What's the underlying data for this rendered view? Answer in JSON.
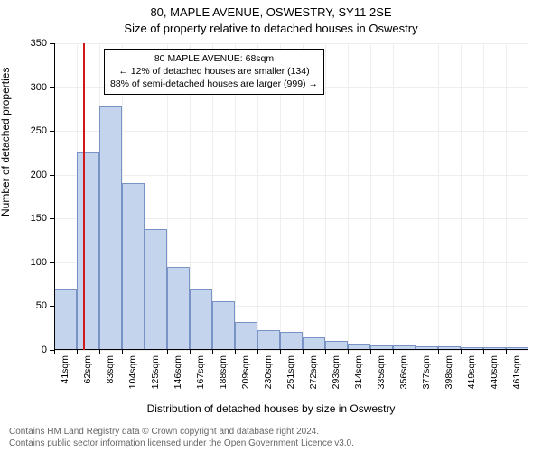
{
  "title_main": "80, MAPLE AVENUE, OSWESTRY, SY11 2SE",
  "title_sub": "Size of property relative to detached houses in Oswestry",
  "ylabel": "Number of detached properties",
  "xlabel": "Distribution of detached houses by size in Oswestry",
  "chart": {
    "type": "histogram",
    "ylim": [
      0,
      350
    ],
    "ytick_step": 50,
    "yticks": [
      0,
      50,
      100,
      150,
      200,
      250,
      300,
      350
    ],
    "categories": [
      "41sqm",
      "62sqm",
      "83sqm",
      "104sqm",
      "125sqm",
      "146sqm",
      "167sqm",
      "188sqm",
      "209sqm",
      "230sqm",
      "251sqm",
      "272sqm",
      "293sqm",
      "314sqm",
      "335sqm",
      "356sqm",
      "377sqm",
      "398sqm",
      "419sqm",
      "440sqm",
      "461sqm"
    ],
    "values": [
      70,
      225,
      278,
      190,
      138,
      95,
      70,
      56,
      32,
      23,
      21,
      14,
      10,
      7,
      5,
      5,
      4,
      4,
      3,
      3,
      3
    ],
    "bar_fill": "#c5d4ed",
    "bar_stroke": "#7a93c6",
    "background_color": "#ffffff",
    "grid_color": "#eeeeee",
    "marker_line_color": "#d01818",
    "marker_bin_index": 1,
    "bar_width_ratio": 1.0
  },
  "annotation": {
    "line1": "80 MAPLE AVENUE: 68sqm",
    "line2": "← 12% of detached houses are smaller (134)",
    "line3": "88% of semi-detached houses are larger (999) →"
  },
  "footer": {
    "line1": "Contains HM Land Registry data © Crown copyright and database right 2024.",
    "line2": "Contains public sector information licensed under the Open Government Licence v3.0."
  }
}
